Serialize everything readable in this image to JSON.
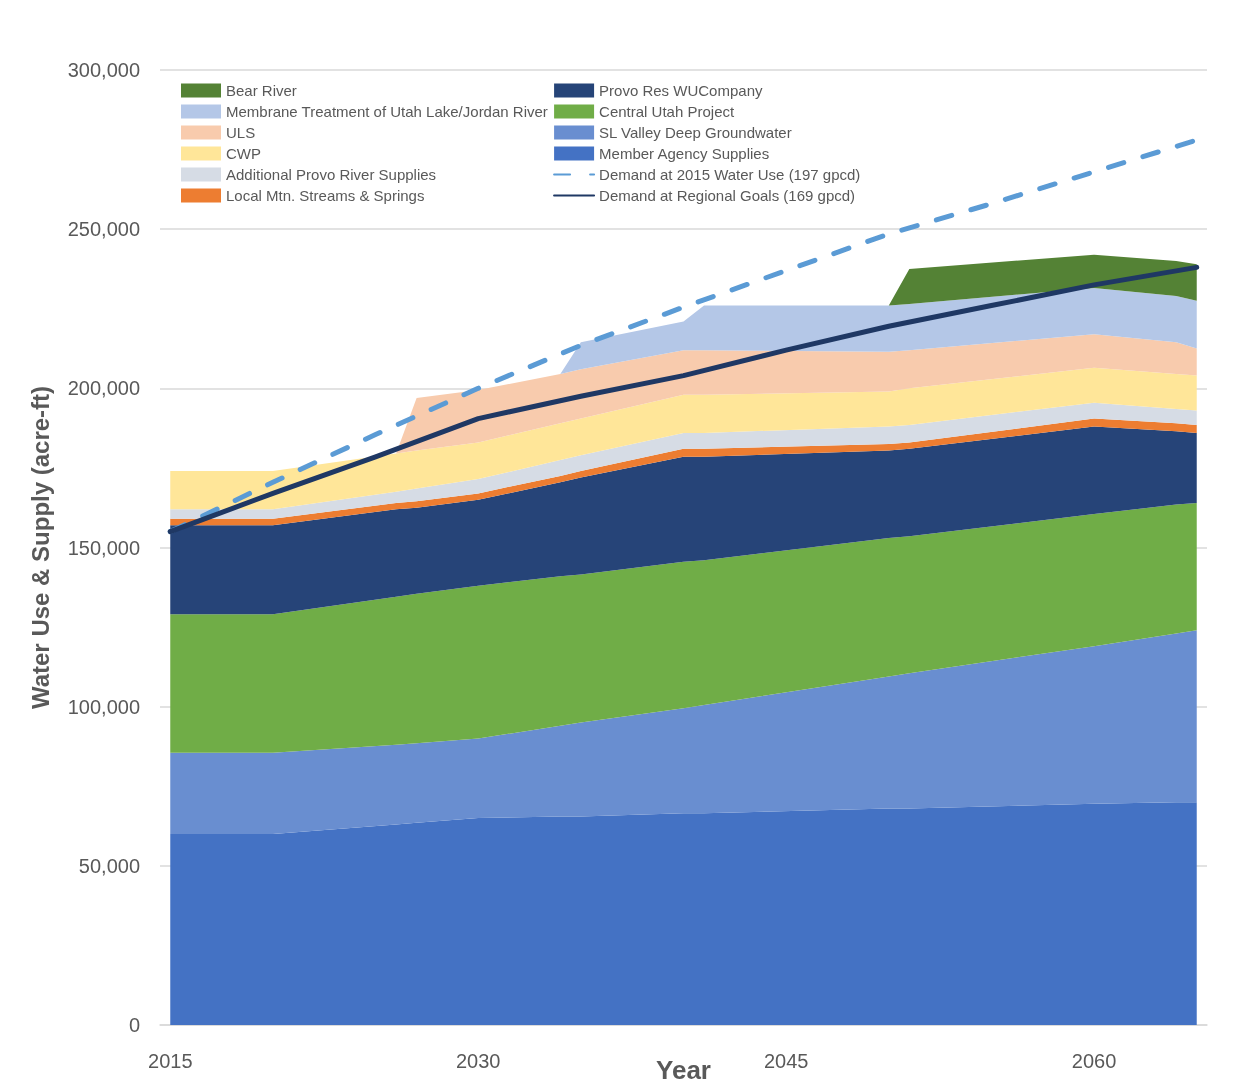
{
  "chart_data": {
    "type": "area",
    "xlabel": "Year",
    "ylabel": "Water Use & Supply (acre-ft)",
    "x": [
      2015,
      2020,
      2026,
      2027,
      2030,
      2034,
      2035,
      2040,
      2041,
      2050,
      2051,
      2060,
      2064,
      2065
    ],
    "xlim": [
      2014.5,
      2065.5
    ],
    "xticks": [
      2015,
      2030,
      2045,
      2060
    ],
    "ylim": [
      0,
      300000
    ],
    "yticks": [
      0,
      {
        "value": 50000,
        "label": "50,000"
      },
      {
        "value": 100000,
        "label": "100,000"
      },
      {
        "value": 150000,
        "label": "150,000"
      },
      {
        "value": 200000,
        "label": "200,000"
      },
      {
        "value": 250000,
        "label": "250,000"
      },
      {
        "value": 300000,
        "label": "300,000"
      }
    ],
    "stacked": true,
    "grid": "y",
    "legend": "top left",
    "marker": "none",
    "series": [
      {
        "name": "Member Agency Supplies",
        "color": "#4472c4",
        "values": [
          60000,
          60000,
          63000,
          63500,
          65000,
          65500,
          65500,
          66500,
          66500,
          68000,
          68000,
          69500,
          70000,
          70000
        ]
      },
      {
        "name": "SL Valley Deep Groundwater",
        "color": "#698ed0",
        "values": [
          25500,
          25500,
          25000,
          25000,
          25000,
          28500,
          29500,
          33000,
          34000,
          41500,
          42500,
          49500,
          53000,
          54000
        ]
      },
      {
        "name": "Central Utah Project",
        "color": "#70ad47",
        "values": [
          43500,
          43500,
          46500,
          47000,
          48000,
          47000,
          46500,
          46000,
          45500,
          43500,
          43000,
          41500,
          40500,
          40000
        ]
      },
      {
        "name": "Provo Res WUCompany",
        "color": "#264478",
        "values": [
          28000,
          28000,
          27500,
          27000,
          27000,
          29500,
          30500,
          33000,
          32500,
          27500,
          27500,
          27500,
          23000,
          22000
        ]
      },
      {
        "name": "Local Mtn. Streams & Springs",
        "color": "#ed7d31",
        "values": [
          2000,
          2000,
          2000,
          2000,
          2000,
          2000,
          2000,
          2500,
          2500,
          2000,
          2000,
          2500,
          2500,
          2500
        ]
      },
      {
        "name": "Additional Provo River Supplies",
        "color": "#d6dce5",
        "values": [
          3000,
          3000,
          3500,
          4000,
          4500,
          5000,
          5000,
          5000,
          5000,
          5500,
          5500,
          5000,
          4500,
          4500
        ]
      },
      {
        "name": "CWP",
        "color": "#ffe699",
        "values": [
          12000,
          12000,
          12000,
          12000,
          11500,
          11500,
          11500,
          12000,
          12000,
          11000,
          11500,
          11000,
          11000,
          11000
        ]
      },
      {
        "name": "ULS",
        "color": "#f8cbad",
        "values": [
          null,
          null,
          0,
          16500,
          16500,
          15500,
          15500,
          14000,
          14000,
          12500,
          12000,
          10500,
          10000,
          8500
        ]
      },
      {
        "name": "Membrane Treatment of Utah Lake/Jordan River",
        "color": "#b4c7e7",
        "values": [
          null,
          null,
          null,
          null,
          null,
          0,
          8500,
          9000,
          14000,
          14500,
          14500,
          14500,
          14500,
          15000
        ]
      },
      {
        "name": "Bear River",
        "color": "#548235",
        "values": [
          null,
          null,
          null,
          null,
          null,
          null,
          null,
          null,
          null,
          0,
          11000,
          10500,
          11000,
          11500
        ]
      },
      {
        "name": "Demand at 2015 Water Use (197 gpcd)",
        "type": "line",
        "color": "#5b9bd5",
        "line_style": "dashed",
        "x": [
          2015,
          2020,
          2025,
          2030,
          2035,
          2040,
          2045,
          2050,
          2055,
          2060,
          2065
        ],
        "values": [
          155000,
          170500,
          185500,
          200000,
          213500,
          225500,
          237000,
          248500,
          258000,
          268000,
          278000
        ]
      },
      {
        "name": "Demand at Regional Goals (169 gpcd)",
        "type": "line",
        "color": "#1f3864",
        "line_style": "solid",
        "x": [
          2015,
          2020,
          2025,
          2030,
          2035,
          2040,
          2045,
          2050,
          2055,
          2060,
          2065
        ],
        "values": [
          155000,
          167000,
          178500,
          190500,
          197500,
          204000,
          212000,
          219500,
          226000,
          232500,
          238000
        ]
      }
    ]
  }
}
